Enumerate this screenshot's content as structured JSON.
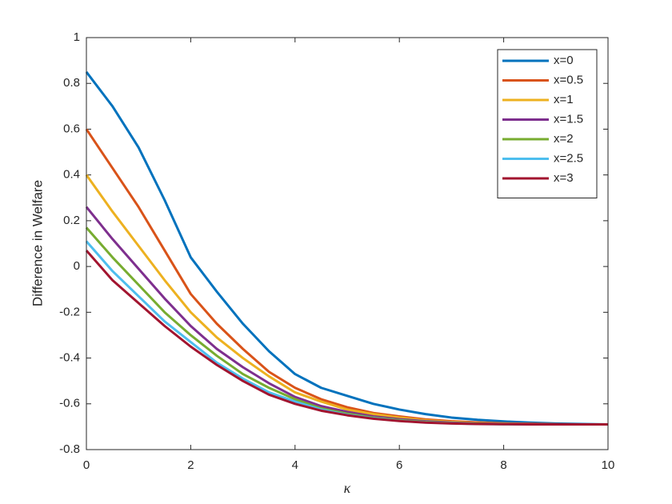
{
  "chart_data": {
    "type": "line",
    "xlabel": "κ",
    "ylabel": "Difference in Welfare",
    "x": [
      0,
      0.5,
      1,
      1.5,
      2,
      2.5,
      3,
      3.5,
      4,
      4.5,
      5,
      5.5,
      6,
      6.5,
      7,
      7.5,
      8,
      8.5,
      9,
      9.5,
      10
    ],
    "series": [
      {
        "name": "x=0",
        "color": "#0072BD",
        "values": [
          0.85,
          0.7,
          0.52,
          0.29,
          0.04,
          -0.11,
          -0.25,
          -0.37,
          -0.47,
          -0.53,
          -0.565,
          -0.6,
          -0.625,
          -0.645,
          -0.66,
          -0.67,
          -0.677,
          -0.682,
          -0.686,
          -0.688,
          -0.69
        ]
      },
      {
        "name": "x=0.5",
        "color": "#D95319",
        "values": [
          0.6,
          0.43,
          0.26,
          0.07,
          -0.12,
          -0.25,
          -0.36,
          -0.46,
          -0.53,
          -0.58,
          -0.615,
          -0.64,
          -0.655,
          -0.668,
          -0.676,
          -0.681,
          -0.685,
          -0.687,
          -0.689,
          -0.69,
          -0.69
        ]
      },
      {
        "name": "x=1",
        "color": "#EDB120",
        "values": [
          0.4,
          0.24,
          0.09,
          -0.06,
          -0.2,
          -0.31,
          -0.4,
          -0.48,
          -0.55,
          -0.59,
          -0.625,
          -0.645,
          -0.66,
          -0.672,
          -0.679,
          -0.684,
          -0.687,
          -0.689,
          -0.69,
          -0.69,
          -0.69
        ]
      },
      {
        "name": "x=1.5",
        "color": "#7E2F8E",
        "values": [
          0.26,
          0.12,
          -0.01,
          -0.14,
          -0.26,
          -0.36,
          -0.44,
          -0.51,
          -0.57,
          -0.61,
          -0.635,
          -0.655,
          -0.667,
          -0.676,
          -0.682,
          -0.686,
          -0.688,
          -0.689,
          -0.69,
          -0.69,
          -0.69
        ]
      },
      {
        "name": "x=2",
        "color": "#77AC30",
        "values": [
          0.17,
          0.04,
          -0.08,
          -0.2,
          -0.3,
          -0.39,
          -0.47,
          -0.53,
          -0.58,
          -0.62,
          -0.643,
          -0.66,
          -0.671,
          -0.679,
          -0.684,
          -0.687,
          -0.689,
          -0.69,
          -0.69,
          -0.69,
          -0.69
        ]
      },
      {
        "name": "x=2.5",
        "color": "#4DBEEE",
        "values": [
          0.11,
          -0.02,
          -0.13,
          -0.24,
          -0.33,
          -0.42,
          -0.49,
          -0.55,
          -0.59,
          -0.625,
          -0.648,
          -0.663,
          -0.674,
          -0.681,
          -0.685,
          -0.688,
          -0.689,
          -0.69,
          -0.69,
          -0.69,
          -0.69
        ]
      },
      {
        "name": "x=3",
        "color": "#A2142F",
        "values": [
          0.07,
          -0.06,
          -0.16,
          -0.26,
          -0.35,
          -0.43,
          -0.5,
          -0.56,
          -0.6,
          -0.63,
          -0.65,
          -0.665,
          -0.675,
          -0.682,
          -0.686,
          -0.688,
          -0.689,
          -0.69,
          -0.69,
          -0.69,
          -0.69
        ]
      }
    ],
    "xlim": [
      0,
      10
    ],
    "xticks": [
      0,
      2,
      4,
      6,
      8,
      10
    ],
    "ylim": [
      -0.8,
      1
    ],
    "yticks": [
      -0.8,
      -0.6,
      -0.4,
      -0.2,
      0,
      0.2,
      0.4,
      0.6,
      0.8,
      1
    ],
    "legend": "northeast",
    "grid": false
  }
}
